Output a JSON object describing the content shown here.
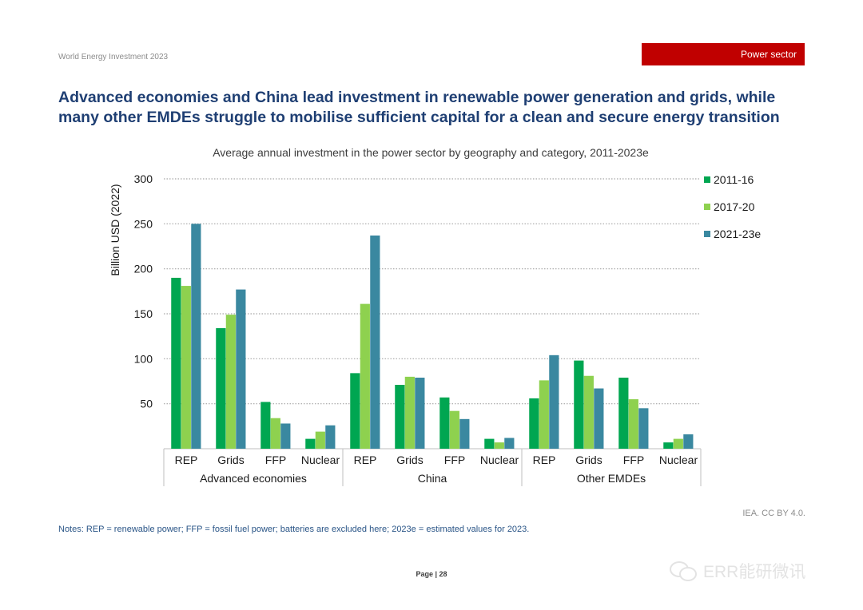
{
  "header": {
    "publication": "World Energy Investment 2023",
    "section": "Power sector"
  },
  "headline": {
    "line1": "Advanced economies and China lead investment in renewable power generation and grids, while",
    "line2": "many other EMDEs struggle to mobilise sufficient capital for a clean and secure energy transition"
  },
  "chart_data": {
    "type": "bar",
    "title": "Average annual investment in the power sector by geography and category, 2011-2023e",
    "xlabel": "",
    "ylabel": "Billion USD (2022)",
    "ylim": [
      0,
      300
    ],
    "yticks": [
      50,
      100,
      150,
      200,
      250,
      300
    ],
    "grid": true,
    "legend_position": "top-right",
    "groups": [
      "Advanced economies",
      "China",
      "Other EMDEs"
    ],
    "categories": [
      "REP",
      "Grids",
      "FFP",
      "Nuclear"
    ],
    "series": [
      {
        "name": "2011-16",
        "color": "#00a651",
        "values": [
          [
            190,
            134,
            52,
            11
          ],
          [
            84,
            71,
            57,
            11
          ],
          [
            56,
            98,
            79,
            7
          ]
        ]
      },
      {
        "name": "2017-20",
        "color": "#8ed14f",
        "values": [
          [
            181,
            149,
            34,
            19
          ],
          [
            161,
            80,
            42,
            7
          ],
          [
            76,
            81,
            55,
            11
          ]
        ]
      },
      {
        "name": "2021-23e",
        "color": "#3a88a0",
        "values": [
          [
            250,
            177,
            28,
            26
          ],
          [
            237,
            79,
            33,
            12
          ],
          [
            104,
            67,
            45,
            16
          ]
        ]
      }
    ]
  },
  "credit": "IEA. CC BY 4.0.",
  "notes": "Notes: REP = renewable power; FFP = fossil fuel power; batteries are excluded here; 2023e = estimated values for 2023.",
  "page": "Page | 28",
  "watermark": "ERR能研微讯"
}
